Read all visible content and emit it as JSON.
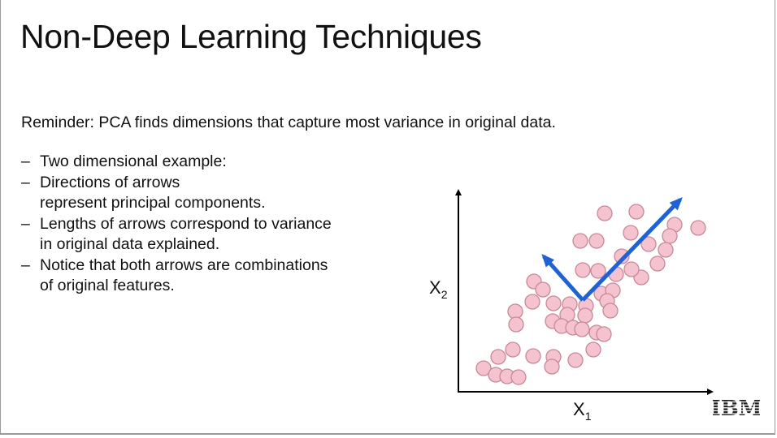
{
  "slide": {
    "title": "Non-Deep Learning Techniques",
    "reminder": "Reminder: PCA finds dimensions that capture most variance in original data.",
    "bullets": [
      {
        "dash": "–",
        "lines": [
          "Two dimensional example:"
        ]
      },
      {
        "dash": "–",
        "lines": [
          "Directions of arrows",
          "represent principal components."
        ]
      },
      {
        "dash": "–",
        "lines": [
          "Lengths of arrows correspond to variance",
          "in original data explained."
        ]
      },
      {
        "dash": "–",
        "lines": [
          "Notice that both arrows are combinations",
          "of original features."
        ]
      }
    ],
    "logo_text": "IBM"
  },
  "diagram": {
    "x_label": "X",
    "x_sub": "1",
    "y_label": "X",
    "y_sub": "2",
    "point_fill": "#f5c3cf",
    "point_stroke": "#c88898",
    "arrow_color": "#1f62d6",
    "axis_color": "#000000"
  }
}
